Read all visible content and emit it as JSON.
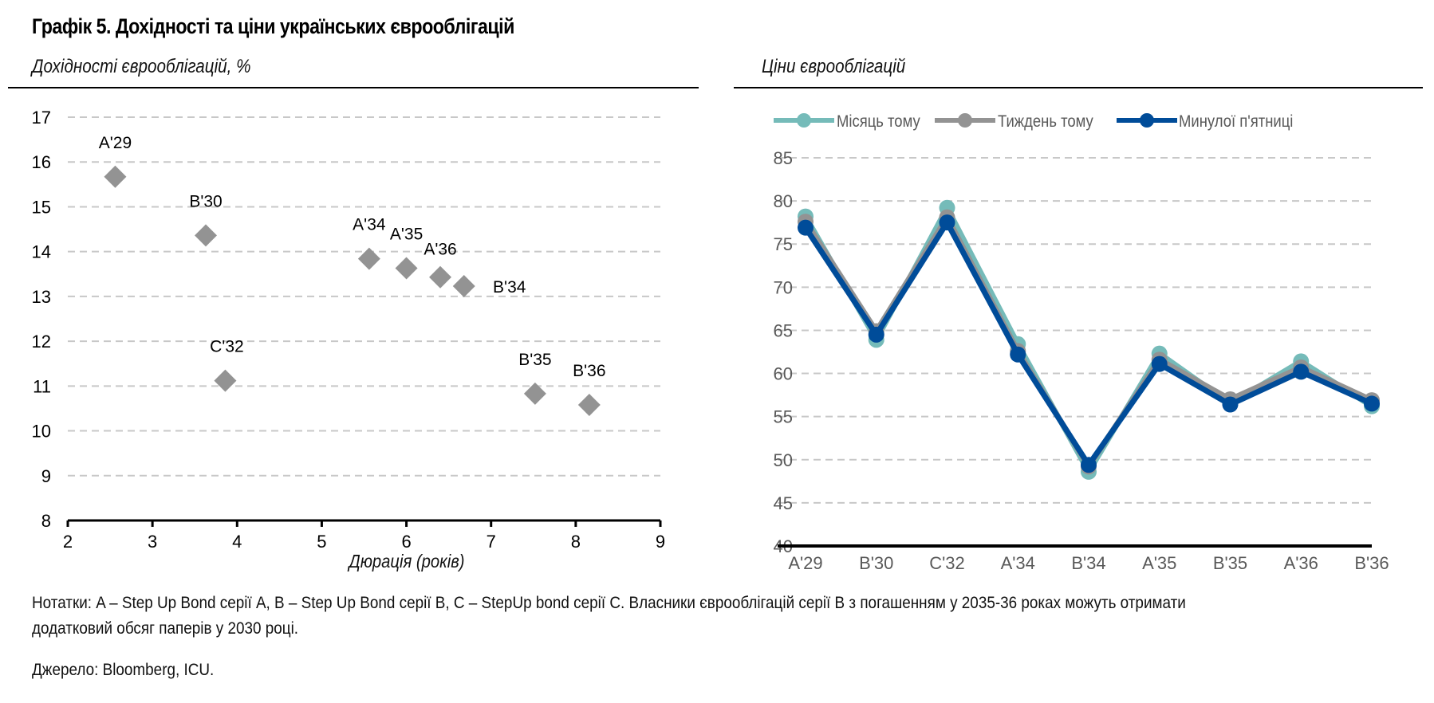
{
  "header": {
    "title": "Графік 5. Дохідності та ціни українських єврооблігацій"
  },
  "left_panel": {
    "subtitle": "Дохідності єврооблігацій, %"
  },
  "right_panel": {
    "subtitle": "Ціни єврооблігацій"
  },
  "notes": {
    "line1": "Нотатки: A – Step Up Bond серії A, B – Step Up Bond серії B, C – StepUp bond серії C. Власники єврооблігацій серії B з погашенням у 2035-36 роках можуть отримати",
    "line2": "додатковий обсяг паперів у 2030 році.",
    "source": "Джерело: Bloomberg, ICU."
  },
  "colors": {
    "scatter_marker": "#939393",
    "grid": "#c8c8c8",
    "month_ago": "#75bbb9",
    "week_ago": "#939393",
    "last_friday": "#004c99",
    "axis": "#000000"
  },
  "chart_data": [
    {
      "type": "scatter",
      "title": "Дохідності єврооблігацій, %",
      "xlabel": "Дюрація (років)",
      "ylabel": "",
      "xlim": [
        2,
        9
      ],
      "ylim": [
        8,
        17
      ],
      "xticks": [
        2,
        3,
        4,
        5,
        6,
        7,
        8,
        9
      ],
      "yticks": [
        8,
        9,
        10,
        11,
        12,
        13,
        14,
        15,
        16,
        17
      ],
      "grid": "horizontal dashed",
      "marker": "diamond",
      "points": [
        {
          "label": "A'29",
          "x": 2.56,
          "y": 15.67
        },
        {
          "label": "B'30",
          "x": 3.63,
          "y": 14.36
        },
        {
          "label": "C'32",
          "x": 3.86,
          "y": 11.12
        },
        {
          "label": "A'34",
          "x": 5.56,
          "y": 13.84
        },
        {
          "label": "A'35",
          "x": 6.0,
          "y": 13.63
        },
        {
          "label": "A'36",
          "x": 6.4,
          "y": 13.43
        },
        {
          "label": "B'34",
          "x": 6.68,
          "y": 13.23
        },
        {
          "label": "B'35",
          "x": 7.52,
          "y": 10.83
        },
        {
          "label": "B'36",
          "x": 8.16,
          "y": 10.58
        }
      ]
    },
    {
      "type": "line",
      "title": "Ціни єврооблігацій",
      "xlabel": "",
      "ylabel": "",
      "ylim": [
        40,
        85
      ],
      "yticks": [
        40,
        45,
        50,
        55,
        60,
        65,
        70,
        75,
        80,
        85
      ],
      "grid": "horizontal dashed",
      "legend": "top",
      "categories": [
        "A'29",
        "B'30",
        "C'32",
        "A'34",
        "B'34",
        "A'35",
        "B'35",
        "A'36",
        "B'36"
      ],
      "series": [
        {
          "name": "Місяць тому",
          "color": "#75bbb9",
          "values": [
            78.2,
            63.9,
            79.2,
            63.4,
            48.6,
            62.3,
            56.5,
            61.4,
            56.2
          ]
        },
        {
          "name": "Тиждень тому",
          "color": "#939393",
          "values": [
            77.6,
            64.9,
            78.1,
            62.6,
            49.2,
            61.6,
            57.0,
            60.7,
            56.9
          ]
        },
        {
          "name": "Минулої п'ятниці",
          "color": "#004c99",
          "values": [
            76.9,
            64.5,
            77.5,
            62.2,
            49.4,
            61.1,
            56.4,
            60.2,
            56.5
          ]
        }
      ]
    }
  ]
}
